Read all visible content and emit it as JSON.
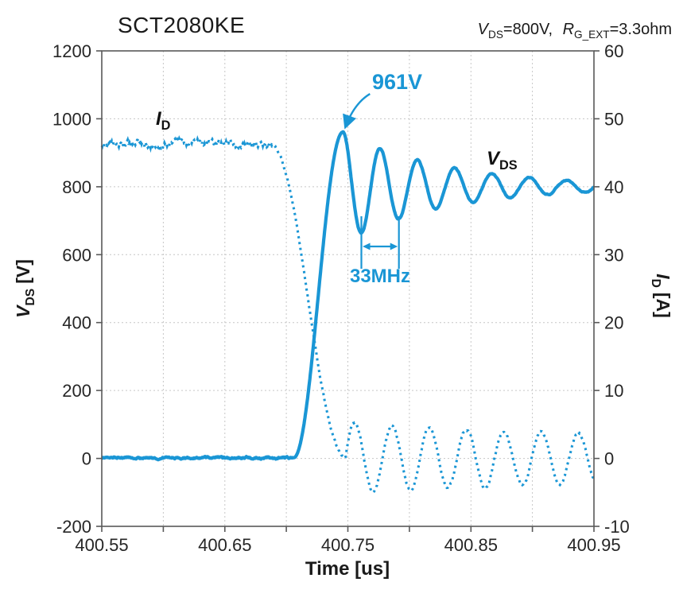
{
  "chart_data": {
    "type": "line",
    "title": "SCT2080KE",
    "condition": {
      "items": [
        {
          "sym": "V",
          "sub": "DS",
          "value": "=800V,"
        },
        {
          "sym": "R",
          "sub": "G_EXT",
          "value": "=3.3ohm"
        }
      ]
    },
    "x_axis": {
      "label": "Time [us]",
      "min": 400.55,
      "max": 400.95,
      "tick_step": 0.05,
      "label_every": 2,
      "decimals": 2
    },
    "y_left": {
      "sym": "V",
      "sub": "DS",
      "unit": "[V]",
      "min": -200,
      "max": 1200,
      "tick_step": 200
    },
    "y_right": {
      "sym": "I",
      "sub": "D",
      "unit": "[A]",
      "min": -10,
      "max": 60,
      "tick_step": 10
    },
    "colors": {
      "trace": "#1a96d5",
      "grid": "#c6c6c6",
      "axis": "#595959",
      "text": "#262626"
    },
    "series": [
      {
        "name": "V_DS",
        "axis": "left",
        "style": "solid",
        "params": {
          "baseline_v": 2,
          "rise_start_us": 400.706,
          "peak_us": 400.746,
          "peak_v": 961,
          "settle_v": 800,
          "ring_freq_mhz": 33,
          "ring_decay_us": 0.085
        },
        "key_points": [
          [
            400.55,
            0
          ],
          [
            400.7,
            0
          ],
          [
            400.72,
            300
          ],
          [
            400.735,
            700
          ],
          [
            400.746,
            961
          ],
          [
            400.761,
            680
          ],
          [
            400.776,
            910
          ],
          [
            400.791,
            706
          ],
          [
            400.82,
            855
          ],
          [
            400.85,
            830
          ],
          [
            400.9,
            810
          ],
          [
            400.95,
            800
          ]
        ]
      },
      {
        "name": "I_D",
        "axis": "right",
        "style": "dotted",
        "params": {
          "baseline_a": 46.2,
          "fall_start_us": 400.688,
          "fall_end_us": 400.748,
          "ring_amp_a": 5.2,
          "ring_freq_mhz": 33,
          "ring_decay_us": 0.55
        },
        "key_points": [
          [
            400.55,
            45
          ],
          [
            400.65,
            46
          ],
          [
            400.688,
            46
          ],
          [
            400.72,
            23
          ],
          [
            400.748,
            0
          ],
          [
            400.756,
            5
          ],
          [
            400.771,
            -4.5
          ],
          [
            400.786,
            4
          ],
          [
            400.85,
            3
          ],
          [
            400.95,
            -2
          ]
        ]
      }
    ],
    "annotations": {
      "peak_label": "961V",
      "peak_value_v": 961,
      "peak_time_us": 400.746,
      "freq_label": "33MHz",
      "ring_freq_mhz": 33,
      "trough1_us": 400.761,
      "trough2_us": 400.7915,
      "vds_label": {
        "sym": "V",
        "sub": "DS"
      },
      "id_label": {
        "sym": "I",
        "sub": "D"
      }
    }
  }
}
